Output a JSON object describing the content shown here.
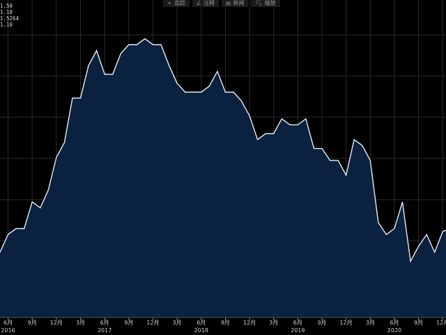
{
  "toolbar": {
    "buttons": [
      {
        "icon": "plus-icon",
        "glyph": "+",
        "label": "追踪"
      },
      {
        "icon": "pencil-icon",
        "glyph": "∠",
        "label": "注释"
      },
      {
        "icon": "news-icon",
        "glyph": "▤",
        "label": "新闻"
      },
      {
        "icon": "zoom-icon",
        "glyph": "🔍︎",
        "label": "缩放"
      }
    ]
  },
  "readout": [
    "1.50",
    "1.10",
    "1.5264",
    "1.10"
  ],
  "colors": {
    "background": "#000000",
    "fill": "#0a2240",
    "line": "#e8eef5",
    "grid": "#2b2b2b",
    "text": "#d0d0d0"
  },
  "chart_data": {
    "type": "area",
    "title": "",
    "xlabel": "",
    "ylabel": "",
    "x_ticks": [
      {
        "label": "6月",
        "year": "2016",
        "i": 1
      },
      {
        "label": "9月",
        "year": "",
        "i": 4
      },
      {
        "label": "12月",
        "year": "",
        "i": 7
      },
      {
        "label": "3月",
        "year": "",
        "i": 10
      },
      {
        "label": "6月",
        "year": "2017",
        "i": 13
      },
      {
        "label": "9月",
        "year": "",
        "i": 16
      },
      {
        "label": "12月",
        "year": "",
        "i": 19
      },
      {
        "label": "3月",
        "year": "",
        "i": 22
      },
      {
        "label": "6月",
        "year": "2018",
        "i": 25
      },
      {
        "label": "9月",
        "year": "",
        "i": 28
      },
      {
        "label": "12月",
        "year": "",
        "i": 31
      },
      {
        "label": "3月",
        "year": "",
        "i": 34
      },
      {
        "label": "6月",
        "year": "2019",
        "i": 37
      },
      {
        "label": "9月",
        "year": "",
        "i": 40
      },
      {
        "label": "12月",
        "year": "",
        "i": 43
      },
      {
        "label": "3月",
        "year": "",
        "i": 46
      },
      {
        "label": "6月",
        "year": "2020",
        "i": 49
      },
      {
        "label": "9月",
        "year": "",
        "i": 52
      },
      {
        "label": "12月",
        "year": "",
        "i": 55
      }
    ],
    "ylim": [
      0,
      1
    ],
    "grid": true,
    "series": [
      {
        "values": [
          0.22,
          0.28,
          0.3,
          0.3,
          0.39,
          0.37,
          0.43,
          0.54,
          0.59,
          0.74,
          0.74,
          0.85,
          0.9,
          0.82,
          0.82,
          0.89,
          0.92,
          0.92,
          0.94,
          0.92,
          0.92,
          0.85,
          0.79,
          0.76,
          0.76,
          0.76,
          0.78,
          0.83,
          0.76,
          0.76,
          0.73,
          0.68,
          0.6,
          0.62,
          0.62,
          0.67,
          0.65,
          0.65,
          0.67,
          0.57,
          0.57,
          0.53,
          0.53,
          0.48,
          0.6,
          0.58,
          0.53,
          0.32,
          0.28,
          0.3,
          0.39,
          0.19,
          0.24,
          0.28,
          0.22,
          0.29,
          0.3
        ]
      }
    ]
  }
}
